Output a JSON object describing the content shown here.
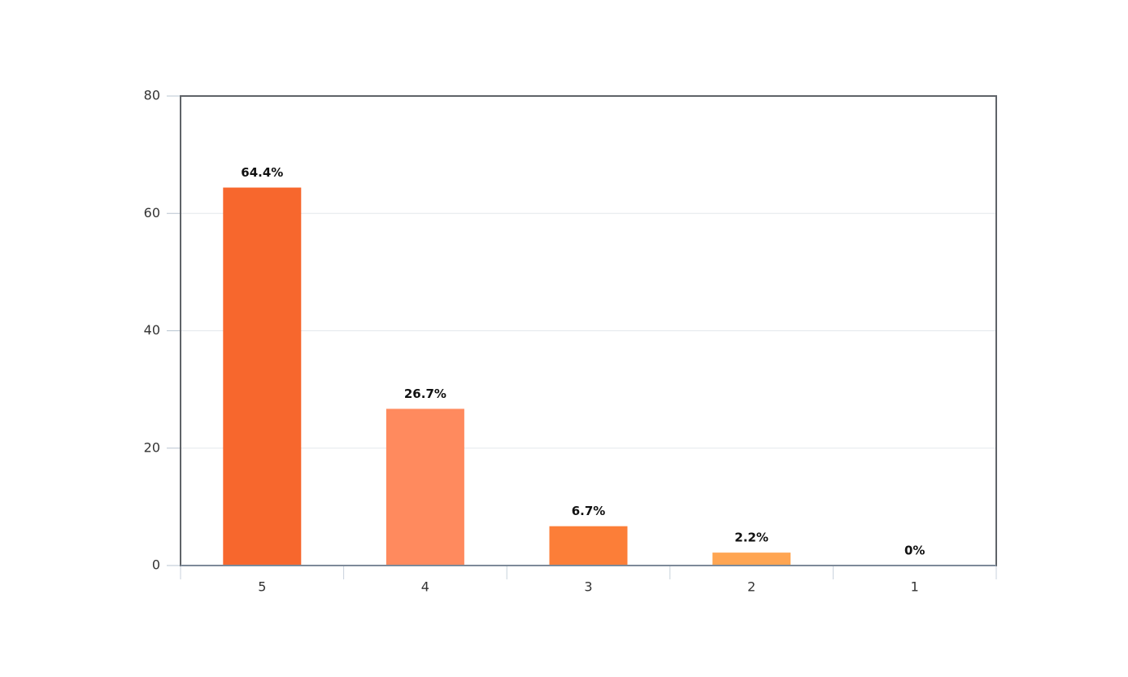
{
  "chart_data": {
    "type": "bar",
    "categories": [
      "5",
      "4",
      "3",
      "2",
      "1"
    ],
    "values": [
      64.4,
      26.7,
      6.7,
      2.2,
      0
    ],
    "value_labels": [
      "64.4%",
      "26.7%",
      "6.7%",
      "2.2%",
      "0%"
    ],
    "colors": [
      "#f7672d",
      "#ff8a5e",
      "#fc7e38",
      "#ffa552",
      "#ffbe7a"
    ],
    "ylim": [
      0,
      80
    ],
    "yticks": [
      0,
      20,
      40,
      60,
      80
    ],
    "grid": true
  }
}
